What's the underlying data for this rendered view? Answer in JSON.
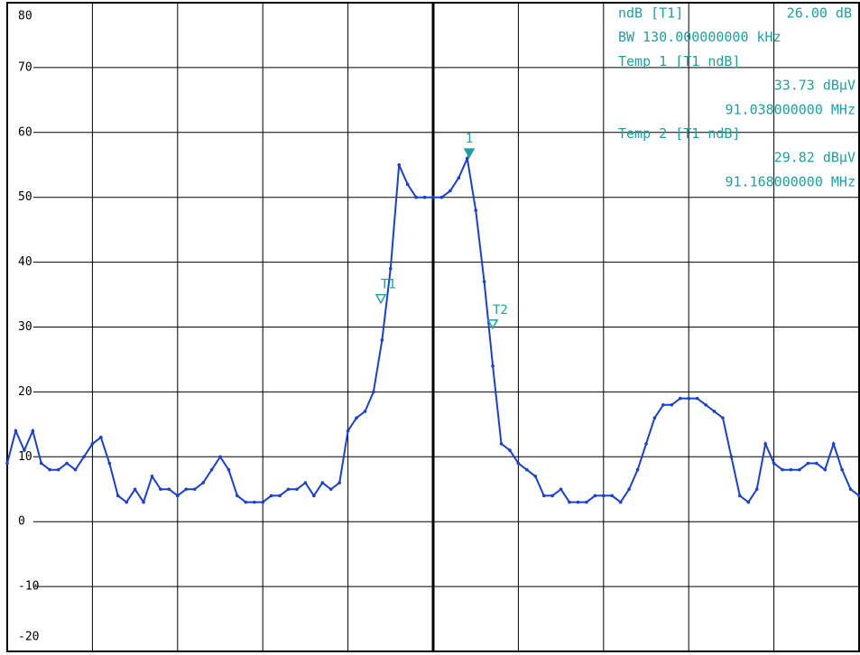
{
  "chart_data": {
    "type": "line",
    "color": "#1a3fd6",
    "marker_color": "#1fa0a0",
    "ylim": [
      -20,
      80
    ],
    "yticks": [
      -20,
      -10,
      0,
      10,
      20,
      30,
      40,
      50,
      60,
      70,
      80
    ],
    "grid": true,
    "values": [
      9,
      14,
      11,
      14,
      9,
      8,
      8,
      9,
      8,
      10,
      12,
      13,
      9,
      4,
      3,
      5,
      3,
      7,
      5,
      5,
      4,
      5,
      5,
      6,
      8,
      10,
      8,
      4,
      3,
      3,
      3,
      4,
      4,
      5,
      5,
      6,
      4,
      6,
      5,
      6,
      14,
      16,
      17,
      20,
      28,
      39,
      55,
      52,
      50,
      50,
      50,
      50,
      51,
      53,
      56,
      48,
      37,
      24,
      12,
      11,
      9,
      8,
      7,
      4,
      4,
      5,
      3,
      3,
      3,
      4,
      4,
      4,
      3,
      5,
      8,
      12,
      16,
      18,
      18,
      19,
      19,
      19,
      18,
      17,
      16,
      10,
      4,
      3,
      5,
      12,
      9,
      8,
      8,
      8,
      9,
      9,
      8,
      12,
      8,
      5,
      4
    ],
    "markers": [
      {
        "label": "1",
        "value": 56.2,
        "style": "filled"
      },
      {
        "label": "T1",
        "value": 33.73,
        "style": "hollow"
      },
      {
        "label": "T2",
        "value": 29.82,
        "style": "hollow"
      }
    ],
    "info": [
      [
        "ndB [T1]",
        "26.00 dB"
      ],
      [
        "BW 130.000000000 kHz"
      ],
      [
        "Temp 1 [T1 ndB]"
      ],
      [
        "33.73 dBµV"
      ],
      [
        "91.038000000 MHz"
      ],
      [
        "Temp 2 [T1 ndB]"
      ],
      [
        "29.82 dBµV"
      ],
      [
        "91.168000000 MHz"
      ]
    ]
  }
}
